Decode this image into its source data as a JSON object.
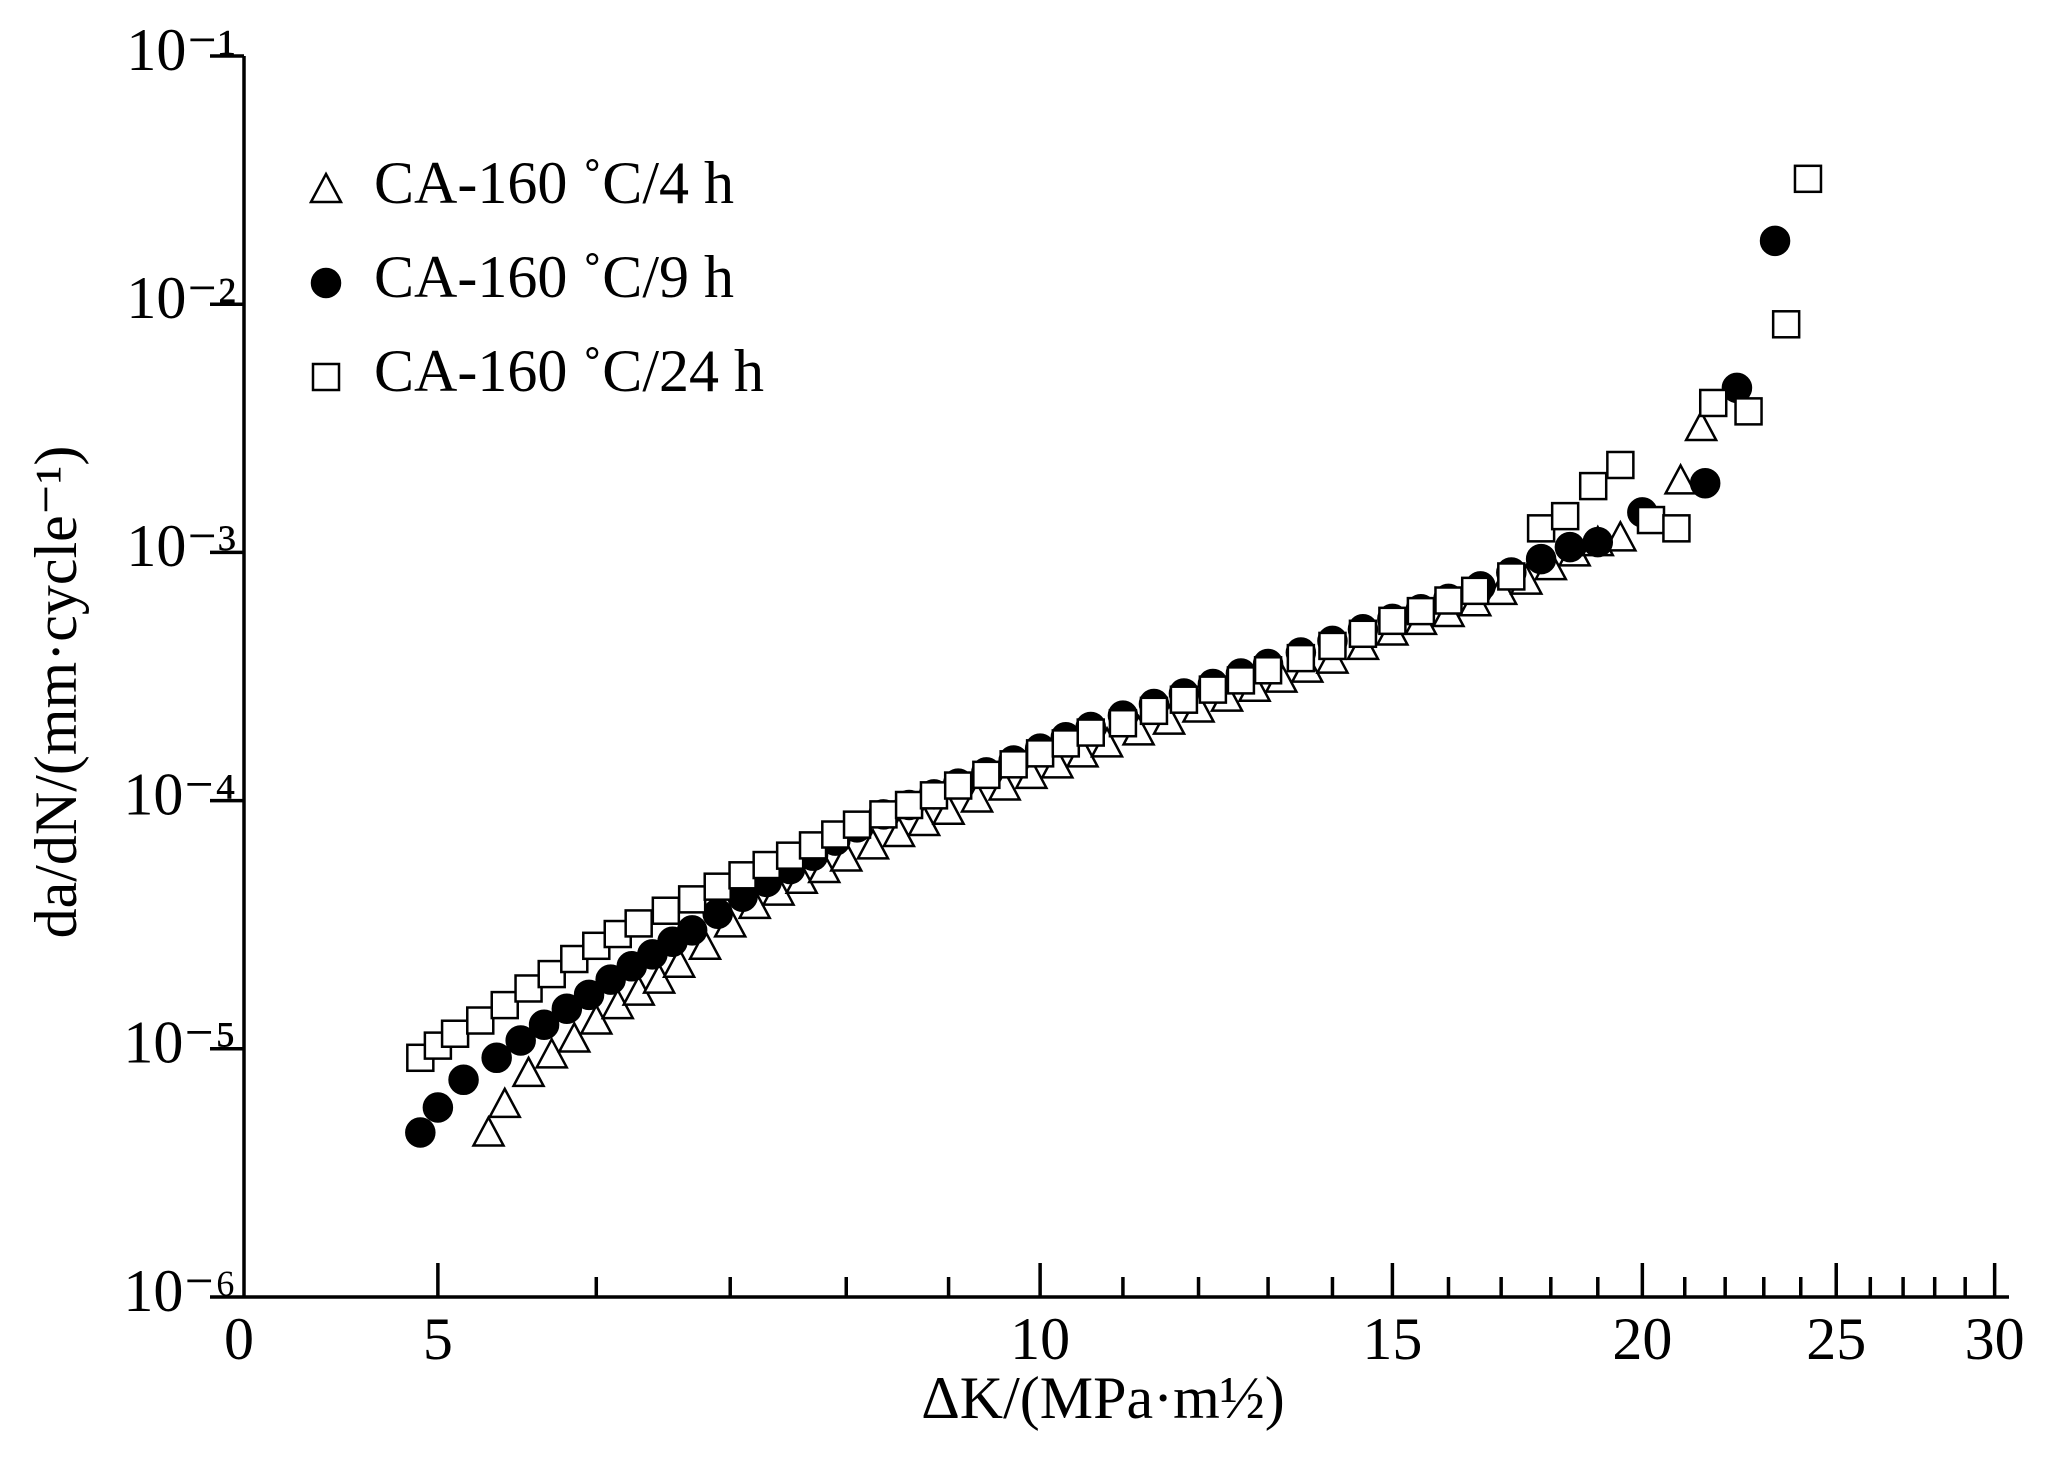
{
  "chart_data": {
    "type": "scatter",
    "xlabel": "ΔK/(MPa·m½)",
    "ylabel": "da/dN/(mm·cycle⁻¹)",
    "origin_label": "0",
    "xscale": "log",
    "yscale": "log",
    "xlim": [
      4,
      30.5
    ],
    "ylim": [
      1e-06,
      0.1
    ],
    "xticks": [
      5,
      10,
      15,
      20,
      25,
      30
    ],
    "xminor_ticks": [
      6,
      7,
      8,
      9,
      11,
      12,
      13,
      14,
      16,
      17,
      18,
      19,
      21,
      22,
      23,
      24,
      26,
      27,
      28,
      29
    ],
    "yticks": [
      {
        "value": 1e-06,
        "label": "10⁻⁶"
      },
      {
        "value": 1e-05,
        "label": "10⁻⁵"
      },
      {
        "value": 0.0001,
        "label": "10⁻⁴"
      },
      {
        "value": 0.001,
        "label": "10⁻³"
      },
      {
        "value": 0.01,
        "label": "10⁻²"
      },
      {
        "value": 0.1,
        "label": "10⁻¹"
      }
    ],
    "legend": "upper left",
    "series": [
      {
        "name": "CA-160 ˚C/4 h",
        "color": "#000000",
        "marker": "triangle",
        "filled": false,
        "x": [
          5.3,
          5.4,
          5.55,
          5.7,
          5.85,
          6.0,
          6.15,
          6.3,
          6.45,
          6.6,
          6.8,
          7.0,
          7.2,
          7.4,
          7.6,
          7.8,
          8.0,
          8.25,
          8.5,
          8.75,
          9.0,
          9.3,
          9.6,
          9.9,
          10.2,
          10.5,
          10.8,
          11.2,
          11.6,
          12.0,
          12.4,
          12.8,
          13.2,
          13.6,
          14.0,
          14.5,
          15.0,
          15.5,
          16.0,
          16.5,
          17.0,
          17.5,
          18.0,
          18.5,
          19.0,
          19.5,
          20.9,
          21.4
        ],
        "values": [
          4.6e-06,
          6e-06,
          8e-06,
          9.5e-06,
          1.1e-05,
          1.3e-05,
          1.5e-05,
          1.7e-05,
          1.9e-05,
          2.2e-05,
          2.6e-05,
          3.2e-05,
          3.8e-05,
          4.3e-05,
          4.8e-05,
          5.3e-05,
          5.9e-05,
          6.6e-05,
          7.4e-05,
          8.2e-05,
          9.1e-05,
          0.000102,
          0.000114,
          0.000127,
          0.00014,
          0.000155,
          0.00017,
          0.00019,
          0.00021,
          0.000235,
          0.00026,
          0.000285,
          0.00031,
          0.00034,
          0.00037,
          0.00042,
          0.00048,
          0.00053,
          0.00057,
          0.00063,
          0.0007,
          0.00077,
          0.00088,
          0.001,
          0.0011,
          0.00115,
          0.00195,
          0.0032
        ]
      },
      {
        "name": "CA-160 ˚C/9 h",
        "color": "#000000",
        "marker": "circle",
        "filled": true,
        "x": [
          4.9,
          5.0,
          5.15,
          5.35,
          5.5,
          5.65,
          5.8,
          5.95,
          6.1,
          6.25,
          6.4,
          6.55,
          6.7,
          6.9,
          7.1,
          7.3,
          7.5,
          7.7,
          7.9,
          8.1,
          8.35,
          8.6,
          8.85,
          9.1,
          9.4,
          9.7,
          10.0,
          10.3,
          10.6,
          11.0,
          11.4,
          11.8,
          12.2,
          12.6,
          13.0,
          13.5,
          14.0,
          14.5,
          15.0,
          15.5,
          16.0,
          16.6,
          17.2,
          17.8,
          18.4,
          19.0,
          20.0,
          21.5,
          22.3,
          23.3
        ],
        "values": [
          4.6e-06,
          5.8e-06,
          7.5e-06,
          9.2e-06,
          1.08e-05,
          1.25e-05,
          1.45e-05,
          1.65e-05,
          1.9e-05,
          2.15e-05,
          2.4e-05,
          2.7e-05,
          3e-05,
          3.5e-05,
          4.1e-05,
          4.7e-05,
          5.3e-05,
          6e-05,
          6.9e-05,
          7.8e-05,
          8.8e-05,
          9.6e-05,
          0.000106,
          0.000117,
          0.00013,
          0.000145,
          0.000162,
          0.00018,
          0.000198,
          0.00022,
          0.000245,
          0.00027,
          0.000295,
          0.000325,
          0.000355,
          0.000395,
          0.00044,
          0.00049,
          0.00054,
          0.00059,
          0.00065,
          0.00073,
          0.00083,
          0.00094,
          0.00105,
          0.0011,
          0.00145,
          0.0019,
          0.0046,
          0.018
        ]
      },
      {
        "name": "CA-160 ˚C/24 h",
        "color": "#000000",
        "marker": "square",
        "filled": false,
        "x": [
          4.9,
          5.0,
          5.1,
          5.25,
          5.4,
          5.55,
          5.7,
          5.85,
          6.0,
          6.15,
          6.3,
          6.5,
          6.7,
          6.9,
          7.1,
          7.3,
          7.5,
          7.7,
          7.9,
          8.1,
          8.35,
          8.6,
          8.85,
          9.1,
          9.4,
          9.7,
          10.0,
          10.3,
          10.6,
          11.0,
          11.4,
          11.8,
          12.2,
          12.6,
          13.0,
          13.5,
          14.0,
          14.5,
          15.0,
          15.5,
          16.0,
          16.5,
          17.2,
          17.8,
          18.3,
          18.9,
          19.5,
          20.2,
          20.8,
          21.7,
          22.6,
          23.6,
          24.2
        ],
        "values": [
          9.2e-06,
          1.03e-05,
          1.15e-05,
          1.3e-05,
          1.5e-05,
          1.75e-05,
          2e-05,
          2.3e-05,
          2.6e-05,
          2.9e-05,
          3.2e-05,
          3.6e-05,
          4e-05,
          4.5e-05,
          5e-05,
          5.5e-05,
          6e-05,
          6.6e-05,
          7.3e-05,
          8e-05,
          8.8e-05,
          9.6e-05,
          0.000105,
          0.000115,
          0.000127,
          0.00014,
          0.000155,
          0.00017,
          0.000188,
          0.000205,
          0.00023,
          0.000255,
          0.00028,
          0.000305,
          0.000335,
          0.000375,
          0.00042,
          0.00047,
          0.00053,
          0.00058,
          0.00064,
          0.0007,
          0.0008,
          0.00125,
          0.0014,
          0.00185,
          0.00225,
          0.00135,
          0.00125,
          0.004,
          0.0037,
          0.0083,
          0.032
        ]
      }
    ]
  }
}
